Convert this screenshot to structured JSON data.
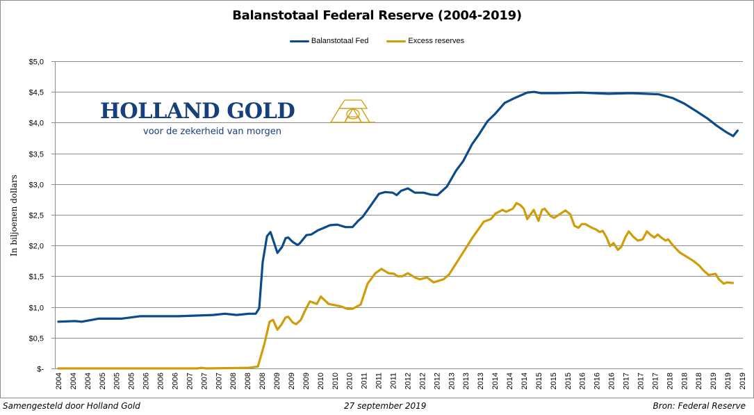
{
  "chart_data": {
    "type": "line",
    "title": "Balanstotaal Federal Reserve (2004-2019)",
    "xlabel": "",
    "ylabel": "In biljoenen dollars",
    "ylim": [
      0,
      5
    ],
    "xlim": [
      2004,
      2019.75
    ],
    "y_ticks": [
      0,
      0.5,
      1,
      1.5,
      2,
      2.5,
      3,
      3.5,
      4,
      4.5,
      5
    ],
    "y_tick_labels": [
      "$-",
      "$0,5",
      "$1,0",
      "$1,5",
      "$2,0",
      "$2,5",
      "$3,0",
      "$3,5",
      "$4,0",
      "$4,5",
      "$5,0"
    ],
    "x_tick_labels": [
      "2004",
      "2004",
      "2004",
      "2005",
      "2005",
      "2005",
      "2006",
      "2006",
      "2006",
      "2007",
      "2007",
      "2007",
      "2008",
      "2008",
      "2008",
      "2009",
      "2009",
      "2009",
      "2010",
      "2010",
      "2010",
      "2011",
      "2011",
      "2011",
      "2012",
      "2012",
      "2012",
      "2013",
      "2013",
      "2013",
      "2014",
      "2014",
      "2014",
      "2015",
      "2015",
      "2015",
      "2016",
      "2016",
      "2016",
      "2017",
      "2017",
      "2017",
      "2018",
      "2018",
      "2018",
      "2019",
      "2019",
      "2019"
    ],
    "grid": "horizontal",
    "legend_position": "top-center",
    "series": [
      {
        "name": "Balanstotaal Fed",
        "color": "#0b4a8b",
        "points": [
          [
            2004.0,
            0.76
          ],
          [
            2004.38,
            0.77
          ],
          [
            2004.54,
            0.76
          ],
          [
            2004.92,
            0.81
          ],
          [
            2005.45,
            0.81
          ],
          [
            2005.88,
            0.85
          ],
          [
            2006.77,
            0.85
          ],
          [
            2007.57,
            0.87
          ],
          [
            2007.84,
            0.89
          ],
          [
            2008.11,
            0.87
          ],
          [
            2008.39,
            0.89
          ],
          [
            2008.55,
            0.89
          ],
          [
            2008.63,
            0.98
          ],
          [
            2008.71,
            1.73
          ],
          [
            2008.81,
            2.15
          ],
          [
            2008.89,
            2.22
          ],
          [
            2009.05,
            1.88
          ],
          [
            2009.16,
            1.98
          ],
          [
            2009.24,
            2.12
          ],
          [
            2009.3,
            2.13
          ],
          [
            2009.4,
            2.06
          ],
          [
            2009.51,
            2.01
          ],
          [
            2009.56,
            2.03
          ],
          [
            2009.72,
            2.17
          ],
          [
            2009.83,
            2.18
          ],
          [
            2009.99,
            2.25
          ],
          [
            2010.1,
            2.28
          ],
          [
            2010.26,
            2.33
          ],
          [
            2010.43,
            2.34
          ],
          [
            2010.62,
            2.3
          ],
          [
            2010.78,
            2.3
          ],
          [
            2010.91,
            2.4
          ],
          [
            2011.02,
            2.47
          ],
          [
            2011.21,
            2.66
          ],
          [
            2011.39,
            2.84
          ],
          [
            2011.53,
            2.87
          ],
          [
            2011.71,
            2.86
          ],
          [
            2011.8,
            2.82
          ],
          [
            2011.9,
            2.89
          ],
          [
            2012.06,
            2.93
          ],
          [
            2012.22,
            2.86
          ],
          [
            2012.42,
            2.86
          ],
          [
            2012.58,
            2.83
          ],
          [
            2012.74,
            2.82
          ],
          [
            2012.96,
            2.96
          ],
          [
            2013.17,
            3.22
          ],
          [
            2013.33,
            3.37
          ],
          [
            2013.54,
            3.65
          ],
          [
            2013.7,
            3.81
          ],
          [
            2013.89,
            4.02
          ],
          [
            2014.08,
            4.15
          ],
          [
            2014.29,
            4.32
          ],
          [
            2014.49,
            4.39
          ],
          [
            2014.81,
            4.49
          ],
          [
            2014.97,
            4.5
          ],
          [
            2015.13,
            4.48
          ],
          [
            2015.5,
            4.48
          ],
          [
            2016.04,
            4.49
          ],
          [
            2016.68,
            4.47
          ],
          [
            2017.2,
            4.48
          ],
          [
            2017.84,
            4.46
          ],
          [
            2018.16,
            4.4
          ],
          [
            2018.43,
            4.31
          ],
          [
            2018.7,
            4.19
          ],
          [
            2018.96,
            4.07
          ],
          [
            2019.18,
            3.95
          ],
          [
            2019.39,
            3.85
          ],
          [
            2019.56,
            3.78
          ],
          [
            2019.66,
            3.87
          ]
        ]
      },
      {
        "name": "Excess reserves",
        "color": "#cf9d0a",
        "points": [
          [
            2004.0,
            0.0
          ],
          [
            2007.2,
            0.0
          ],
          [
            2007.3,
            0.01
          ],
          [
            2007.4,
            0.0
          ],
          [
            2008.39,
            0.01
          ],
          [
            2008.6,
            0.03
          ],
          [
            2008.75,
            0.4
          ],
          [
            2008.87,
            0.76
          ],
          [
            2008.95,
            0.79
          ],
          [
            2009.05,
            0.63
          ],
          [
            2009.14,
            0.71
          ],
          [
            2009.24,
            0.83
          ],
          [
            2009.3,
            0.84
          ],
          [
            2009.4,
            0.75
          ],
          [
            2009.48,
            0.72
          ],
          [
            2009.59,
            0.79
          ],
          [
            2009.7,
            0.96
          ],
          [
            2009.8,
            1.09
          ],
          [
            2009.96,
            1.05
          ],
          [
            2010.05,
            1.17
          ],
          [
            2010.23,
            1.05
          ],
          [
            2010.51,
            1.01
          ],
          [
            2010.66,
            0.97
          ],
          [
            2010.78,
            0.97
          ],
          [
            2010.97,
            1.04
          ],
          [
            2011.13,
            1.38
          ],
          [
            2011.31,
            1.55
          ],
          [
            2011.45,
            1.62
          ],
          [
            2011.61,
            1.55
          ],
          [
            2011.74,
            1.54
          ],
          [
            2011.82,
            1.5
          ],
          [
            2011.93,
            1.5
          ],
          [
            2012.06,
            1.55
          ],
          [
            2012.22,
            1.48
          ],
          [
            2012.33,
            1.45
          ],
          [
            2012.5,
            1.48
          ],
          [
            2012.65,
            1.4
          ],
          [
            2012.88,
            1.45
          ],
          [
            2013.01,
            1.53
          ],
          [
            2013.28,
            1.83
          ],
          [
            2013.54,
            2.12
          ],
          [
            2013.81,
            2.39
          ],
          [
            2013.97,
            2.43
          ],
          [
            2014.08,
            2.52
          ],
          [
            2014.24,
            2.58
          ],
          [
            2014.32,
            2.55
          ],
          [
            2014.48,
            2.6
          ],
          [
            2014.56,
            2.69
          ],
          [
            2014.65,
            2.66
          ],
          [
            2014.73,
            2.6
          ],
          [
            2014.81,
            2.43
          ],
          [
            2014.96,
            2.58
          ],
          [
            2015.07,
            2.4
          ],
          [
            2015.15,
            2.58
          ],
          [
            2015.21,
            2.6
          ],
          [
            2015.35,
            2.48
          ],
          [
            2015.43,
            2.45
          ],
          [
            2015.69,
            2.57
          ],
          [
            2015.8,
            2.51
          ],
          [
            2015.9,
            2.32
          ],
          [
            2015.99,
            2.29
          ],
          [
            2016.07,
            2.35
          ],
          [
            2016.15,
            2.35
          ],
          [
            2016.3,
            2.29
          ],
          [
            2016.4,
            2.26
          ],
          [
            2016.48,
            2.22
          ],
          [
            2016.55,
            2.24
          ],
          [
            2016.64,
            2.13
          ],
          [
            2016.72,
            1.99
          ],
          [
            2016.8,
            2.04
          ],
          [
            2016.9,
            1.93
          ],
          [
            2016.98,
            1.98
          ],
          [
            2017.07,
            2.13
          ],
          [
            2017.15,
            2.23
          ],
          [
            2017.26,
            2.14
          ],
          [
            2017.36,
            2.08
          ],
          [
            2017.47,
            2.1
          ],
          [
            2017.57,
            2.23
          ],
          [
            2017.66,
            2.17
          ],
          [
            2017.74,
            2.13
          ],
          [
            2017.82,
            2.18
          ],
          [
            2017.9,
            2.13
          ],
          [
            2018.0,
            2.08
          ],
          [
            2018.06,
            2.1
          ],
          [
            2018.16,
            2.01
          ],
          [
            2018.32,
            1.89
          ],
          [
            2018.48,
            1.82
          ],
          [
            2018.64,
            1.75
          ],
          [
            2018.78,
            1.67
          ],
          [
            2018.88,
            1.59
          ],
          [
            2018.99,
            1.52
          ],
          [
            2019.15,
            1.54
          ],
          [
            2019.23,
            1.45
          ],
          [
            2019.34,
            1.38
          ],
          [
            2019.42,
            1.4
          ],
          [
            2019.55,
            1.39
          ]
        ]
      }
    ]
  },
  "logo": {
    "name": "HOLLAND GOLD",
    "tagline": "voor de zekerheid van morgen",
    "primary_color": "#163f7b",
    "accent_color": "#cf9d0a"
  },
  "footer": {
    "left": "Samengesteld door Holland Gold",
    "center": "27 september 2019",
    "right": "Bron: Federal Reserve"
  }
}
